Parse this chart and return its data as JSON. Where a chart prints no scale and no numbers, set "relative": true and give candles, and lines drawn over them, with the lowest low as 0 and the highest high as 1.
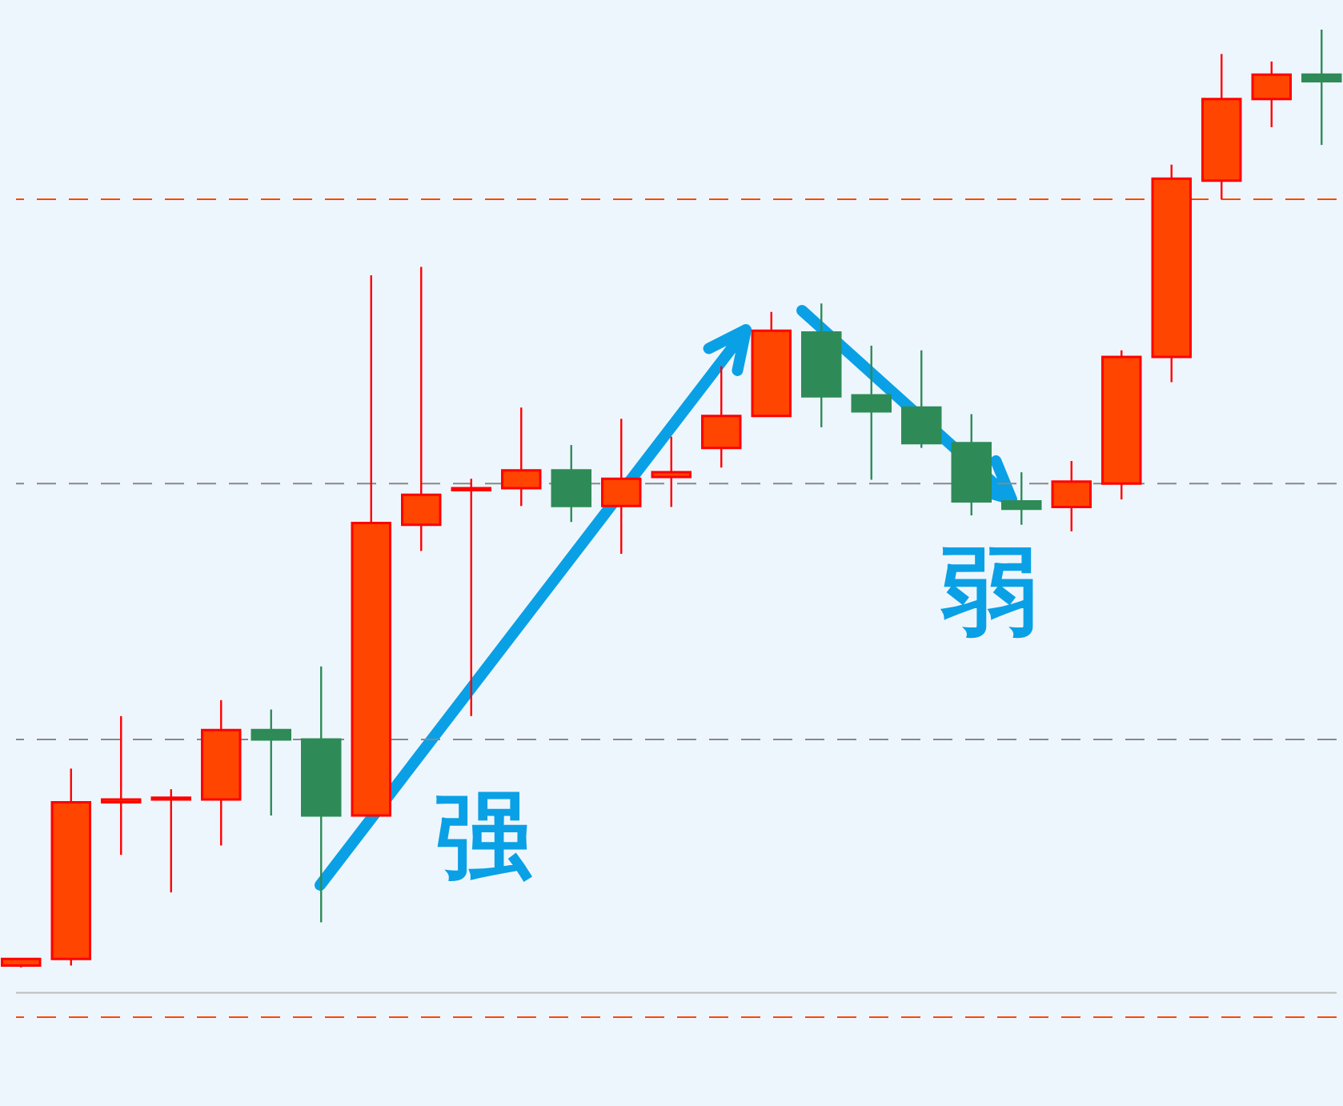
{
  "chart_data": {
    "type": "candlestick",
    "relative": true,
    "grid": false,
    "categories": [
      null,
      null,
      null,
      null,
      null,
      null,
      null,
      null,
      null,
      null,
      null,
      null,
      null,
      null,
      null,
      null,
      null,
      null,
      null,
      null,
      null,
      null,
      null,
      null,
      null,
      null,
      null
    ],
    "ohlc": [
      [
        0.002,
        0.009,
        0,
        0.009
      ],
      [
        0.009,
        0.212,
        0.002,
        0.176
      ],
      [
        0.176,
        0.268,
        0.12,
        0.179
      ],
      [
        0.179,
        0.19,
        0.08,
        0.181
      ],
      [
        0.179,
        0.285,
        0.13,
        0.253
      ],
      [
        0.253,
        0.275,
        0.162,
        0.243
      ],
      [
        0.243,
        0.321,
        0.048,
        0.162
      ],
      [
        0.162,
        0.738,
        0.162,
        0.474
      ],
      [
        0.472,
        0.747,
        0.444,
        0.504
      ],
      [
        0.509,
        0.521,
        0.268,
        0.511
      ],
      [
        0.511,
        0.597,
        0.492,
        0.53
      ],
      [
        0.53,
        0.557,
        0.475,
        0.492
      ],
      [
        0.492,
        0.585,
        0.441,
        0.521
      ],
      [
        0.523,
        0.566,
        0.491,
        0.528
      ],
      [
        0.554,
        0.641,
        0.533,
        0.588
      ],
      [
        0.588,
        0.699,
        0.588,
        0.679
      ],
      [
        0.677,
        0.708,
        0.576,
        0.609
      ],
      [
        0.61,
        0.663,
        0.52,
        0.593
      ],
      [
        0.597,
        0.658,
        0.554,
        0.559
      ],
      [
        0.559,
        0.59,
        0.482,
        0.497
      ],
      [
        0.497,
        0.528,
        0.472,
        0.489
      ],
      [
        0.491,
        0.54,
        0.465,
        0.518
      ],
      [
        0.516,
        0.658,
        0.499,
        0.651
      ],
      [
        0.651,
        0.856,
        0.624,
        0.841
      ],
      [
        0.839,
        0.974,
        0.819,
        0.926
      ],
      [
        0.926,
        0.966,
        0.896,
        0.952
      ],
      [
        0.952,
        1.0,
        0.877,
        0.945
      ]
    ],
    "colors": [
      "#ff4500",
      "#ff4500",
      "#ff4500",
      "#ff4500",
      "#ff4500",
      "#2e8b57",
      "#2e8b57",
      "#ff4500",
      "#ff4500",
      "#ff4500",
      "#ff4500",
      "#2e8b57",
      "#ff4500",
      "#ff4500",
      "#ff4500",
      "#ff4500",
      "#2e8b57",
      "#2e8b57",
      "#2e8b57",
      "#2e8b57",
      "#2e8b57",
      "#ff4500",
      "#ff4500",
      "#ff4500",
      "#ff4500",
      "#ff4500",
      "#2e8b57"
    ],
    "ref_lines": [
      {
        "axis": "y",
        "value": 0.819,
        "color": "#ff4500",
        "line_style": "dashed"
      },
      {
        "axis": "y",
        "value": 0.516,
        "color": "#888888",
        "line_style": "dashed"
      },
      {
        "axis": "y",
        "value": 0.243,
        "color": "#888888",
        "line_style": "dashed"
      },
      {
        "axis": "y",
        "value": -0.027,
        "color": "#bbbbbb",
        "line_style": "solid"
      },
      {
        "axis": "y",
        "value": -0.053,
        "color": "#ff4500",
        "line_style": "dashed"
      }
    ],
    "annotations": [
      "强",
      "弱"
    ]
  }
}
